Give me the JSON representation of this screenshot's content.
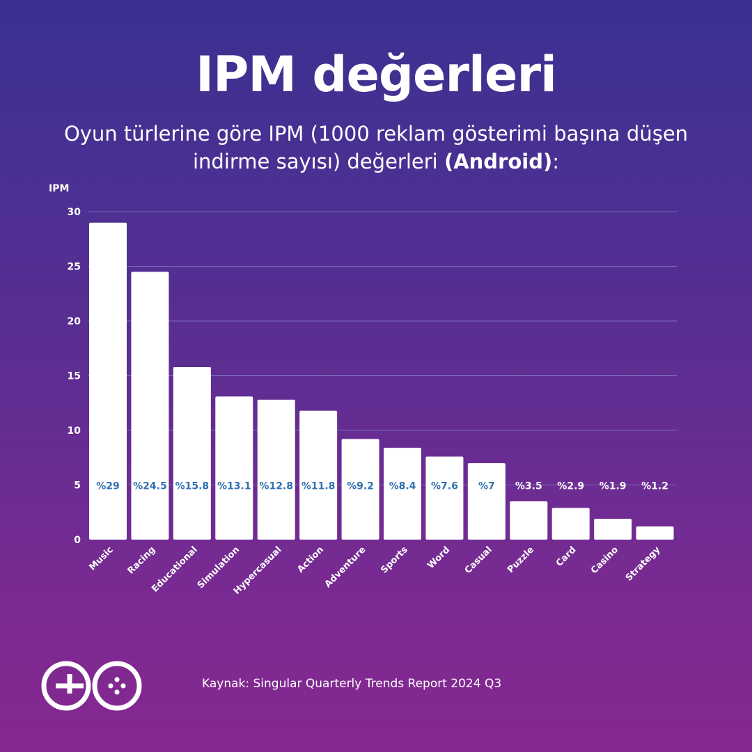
{
  "header": {
    "title": "IPM değerleri",
    "subtitle_main": "Oyun türlerine göre IPM (1000 reklam gösterimi başına düşen indirme sayısı) değerleri",
    "subtitle_bold": "(Android)",
    "subtitle_end": ":"
  },
  "chart_data": {
    "type": "bar",
    "title": "IPM değerleri",
    "ylabel": "IPM",
    "xlabel": "",
    "ylim": [
      0,
      30
    ],
    "yticks": [
      0,
      5,
      10,
      15,
      20,
      25,
      30
    ],
    "grid": true,
    "categories": [
      "Music",
      "Racing",
      "Educational",
      "Simulation",
      "Hypercasual",
      "Action",
      "Adventure",
      "Sports",
      "Word",
      "Casual",
      "Puzzle",
      "Card",
      "Casino",
      "Strategy"
    ],
    "values": [
      29,
      24.5,
      15.8,
      13.1,
      12.8,
      11.8,
      9.2,
      8.4,
      7.6,
      7,
      3.5,
      2.9,
      1.9,
      1.2
    ],
    "data_labels": [
      "%29",
      "%24.5",
      "%15.8",
      "%13.1",
      "%12.8",
      "%11.8",
      "%9.2",
      "%8.4",
      "%7.6",
      "%7",
      "%3.5",
      "%2.9",
      "%1.9",
      "%1.2"
    ],
    "label_value": 5
  },
  "colors": {
    "bar": "#ffffff",
    "label_inside": "#2f6fb0",
    "label_outside": "#ffffff",
    "grid": "#7a6ab8"
  },
  "footer": {
    "logo_icon": "go-logo-icon",
    "source": "Kaynak: Singular Quarterly Trends Report 2024 Q3"
  }
}
